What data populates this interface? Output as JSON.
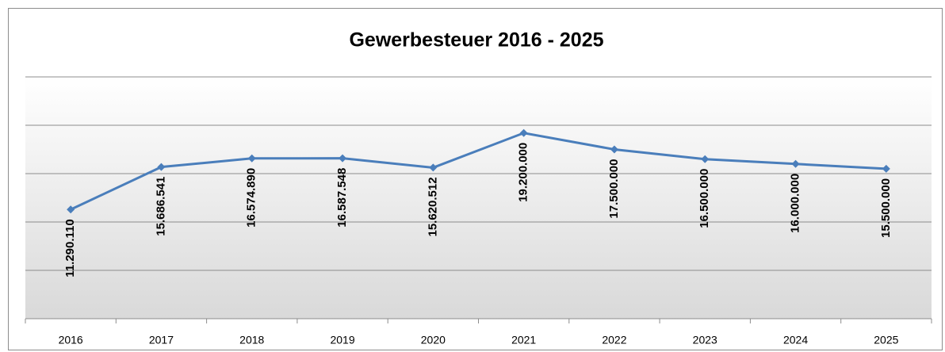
{
  "chart_data": {
    "type": "line",
    "title": "Gewerbesteuer 2016 - 2025",
    "categories": [
      "2016",
      "2017",
      "2018",
      "2019",
      "2020",
      "2021",
      "2022",
      "2023",
      "2024",
      "2025"
    ],
    "series": [
      {
        "color": "#4a7ebb",
        "values": [
          11290110,
          15686541,
          16574890,
          16587548,
          15620512,
          19200000,
          17500000,
          16500000,
          16000000,
          15500000
        ],
        "value_labels": [
          "11.290.110",
          "15.686.541",
          "16.574.890",
          "16.587.548",
          "15.620.512",
          "19.200.000",
          "17.500.000",
          "16.500.000",
          "16.000.000",
          "15.500.000"
        ]
      }
    ],
    "ylim": [
      0,
      25000000
    ],
    "yticks": [
      0,
      5000000,
      10000000,
      15000000,
      20000000,
      25000000
    ],
    "grid": true
  }
}
